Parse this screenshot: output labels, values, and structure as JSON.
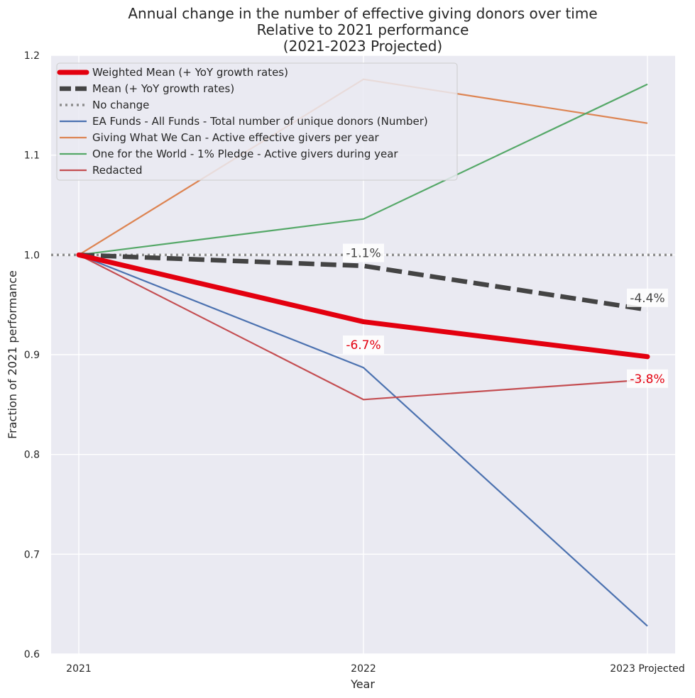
{
  "chart_data": {
    "type": "line",
    "title_lines": [
      "Annual change in the number of effective giving donors over time",
      "Relative to 2021 performance",
      "(2021-2023 Projected)"
    ],
    "xlabel": "Year",
    "ylabel": "Fraction of 2021 performance",
    "categories": [
      "2021",
      "2022",
      "2023 Projected"
    ],
    "ylim": [
      0.6,
      1.2
    ],
    "yticks": [
      "0.6",
      "0.7",
      "0.8",
      "0.9",
      "1.0",
      "1.1",
      "1.2"
    ],
    "grid": true,
    "legend_position": "top-left",
    "series": [
      {
        "name": "EA Funds - All Funds - Total number of unique donors (Number)",
        "values": [
          1.0,
          0.887,
          0.628
        ],
        "color": "#4c72b0",
        "style": "solid",
        "weight": "normal"
      },
      {
        "name": "Giving What We Can - Active effective givers per year",
        "values": [
          1.0,
          1.176,
          1.132
        ],
        "color": "#dd8452",
        "style": "solid",
        "weight": "normal"
      },
      {
        "name": "One for the World - 1% Pledge - Active givers during year",
        "values": [
          1.0,
          1.036,
          1.171
        ],
        "color": "#55a868",
        "style": "solid",
        "weight": "normal"
      },
      {
        "name": "Redacted",
        "values": [
          1.0,
          0.855,
          0.875
        ],
        "color": "#c44e52",
        "style": "solid",
        "weight": "normal"
      },
      {
        "name": "No change",
        "values": [
          1.0,
          1.0,
          1.0
        ],
        "color": "#8c8c8c",
        "style": "dotted",
        "weight": "normal"
      },
      {
        "name": "Mean (+ YoY growth rates)",
        "values": [
          1.0,
          0.989,
          0.945
        ],
        "color": "#444444",
        "style": "dashed",
        "weight": "bold"
      },
      {
        "name": "Weighted Mean (+ YoY growth rates)",
        "values": [
          1.0,
          0.933,
          0.898
        ],
        "color": "#e3000f",
        "style": "solid",
        "weight": "heavy"
      }
    ],
    "legend_order": [
      "Weighted Mean (+ YoY growth rates)",
      "Mean (+ YoY growth rates)",
      "No change",
      "EA Funds - All Funds - Total number of unique donors (Number)",
      "Giving What We Can - Active effective givers per year",
      "One for the World - 1% Pledge - Active givers during year",
      "Redacted"
    ],
    "annotations": [
      {
        "text": "-1.1%",
        "x_index": 1,
        "y": 1.002,
        "color": "#444444"
      },
      {
        "text": "-4.4%",
        "x_index": 2,
        "y": 0.957,
        "color": "#444444"
      },
      {
        "text": "-6.7%",
        "x_index": 1,
        "y": 0.91,
        "color": "#e3000f"
      },
      {
        "text": "-3.8%",
        "x_index": 2,
        "y": 0.876,
        "color": "#e3000f"
      }
    ]
  }
}
